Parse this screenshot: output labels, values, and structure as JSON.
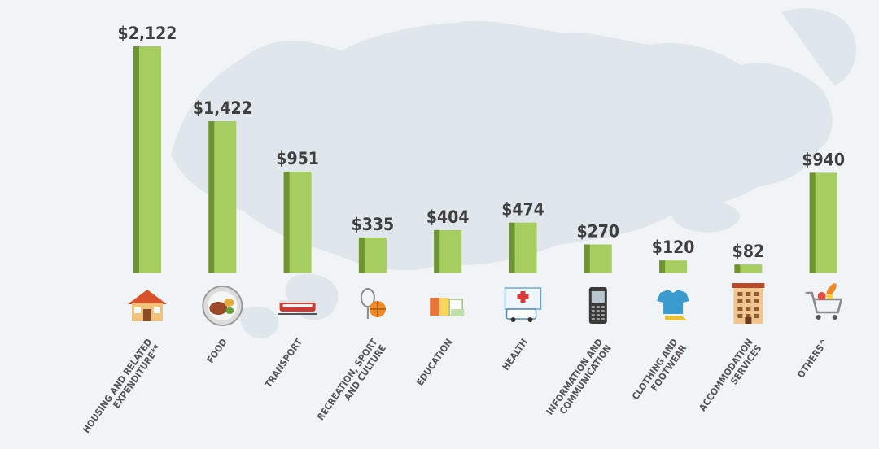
{
  "chart_data": {
    "type": "bar",
    "categories": [
      [
        "HOUSING AND RELATED",
        "EXPENDITURE**"
      ],
      [
        "FOOD"
      ],
      [
        "TRANSPORT"
      ],
      [
        "RECREATION, SPORT",
        "AND CULTURE"
      ],
      [
        "EDUCATION"
      ],
      [
        "HEALTH"
      ],
      [
        "INFORMATION AND",
        "COMMUNICATION"
      ],
      [
        "CLOTHING AND",
        "FOOTWEAR"
      ],
      [
        "ACCOMMODATION",
        "SERVICES"
      ],
      [
        "OTHERS^"
      ]
    ],
    "values": [
      2122,
      1422,
      951,
      335,
      404,
      474,
      270,
      120,
      82,
      940
    ],
    "value_labels": [
      "$2,122",
      "$1,422",
      "$951",
      "$335",
      "$404",
      "$474",
      "$270",
      "$120",
      "$82",
      "$940"
    ],
    "icons": [
      "house-icon",
      "food-plate-icon",
      "train-icon",
      "sports-ball-racket-icon",
      "books-icon",
      "hospital-ambulance-icon",
      "mobile-phone-icon",
      "shirt-shoe-icon",
      "hotel-icon",
      "shopping-cart-icon"
    ],
    "title": "",
    "xlabel": "",
    "ylabel": "",
    "ylim": [
      0,
      2122
    ],
    "grid": false,
    "colors": {
      "bar": "#a6cd5f",
      "bar_shade": "#6e9432",
      "background": "#f1f4f6",
      "map": "#dfe7ec"
    }
  }
}
